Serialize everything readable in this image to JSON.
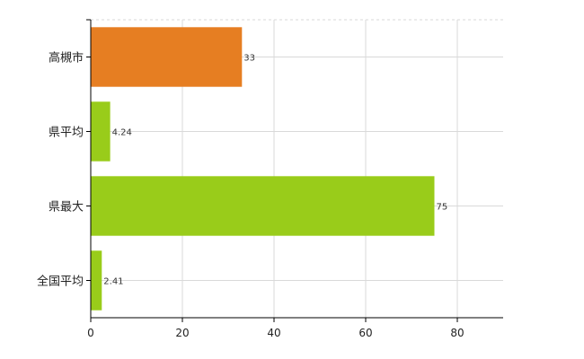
{
  "chart_data": {
    "type": "bar",
    "orientation": "horizontal",
    "title": "",
    "xlabel": "",
    "ylabel": "",
    "categories": [
      "高槻市",
      "県平均",
      "県最大",
      "全国平均"
    ],
    "values": [
      33,
      4.24,
      75,
      2.41
    ],
    "value_labels": [
      "33",
      "4.24",
      "75",
      "2.41"
    ],
    "colors": [
      "#e67e22",
      "#99cc1a",
      "#99cc1a",
      "#99cc1a"
    ],
    "xlim": [
      0,
      90
    ],
    "xticks": [
      0,
      20,
      40,
      60,
      80
    ],
    "xtick_labels": [
      "0",
      "20",
      "40",
      "60",
      "80"
    ],
    "grid": true,
    "legend": "none"
  }
}
